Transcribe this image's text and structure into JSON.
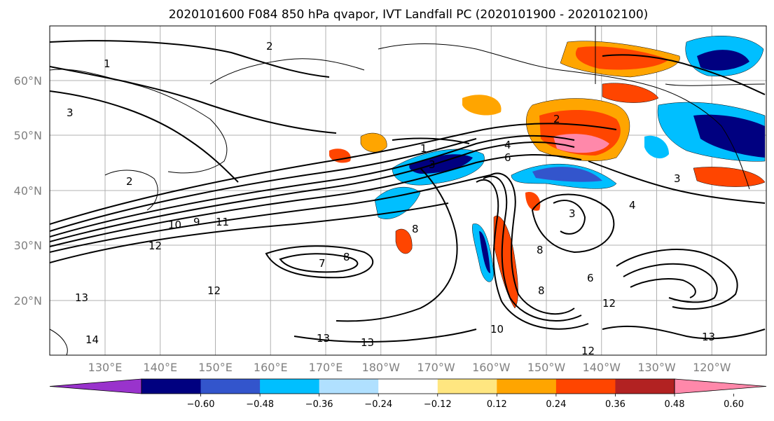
{
  "title": "2020101600 F084 850 hPa qvapor, IVT Landfall PC (2020101900 - 2020102100)",
  "lat_labels": [
    "60°N",
    "50°N",
    "40°N",
    "30°N",
    "20°N"
  ],
  "lon_labels": [
    "130°E",
    "140°E",
    "150°E",
    "160°E",
    "170°E",
    "180°W",
    "170°W",
    "160°W",
    "150°W",
    "140°W",
    "130°W",
    "120°W"
  ],
  "colorbar": {
    "colors": [
      "#9933cc",
      "#000080",
      "#3355cc",
      "#00bfff",
      "#b0e0ff",
      "#ffffff",
      "#ffe680",
      "#ffa500",
      "#ff4500",
      "#b22222",
      "#ff88aa"
    ],
    "tick_labels": [
      "−0.60",
      "−0.48",
      "−0.36",
      "−0.24",
      "−0.12",
      "0.12",
      "0.24",
      "0.36",
      "0.48",
      "0.60"
    ]
  },
  "contour_labels": [
    "1",
    "2",
    "3",
    "4",
    "6",
    "7",
    "8",
    "9",
    "10",
    "11",
    "12",
    "13",
    "14"
  ]
}
